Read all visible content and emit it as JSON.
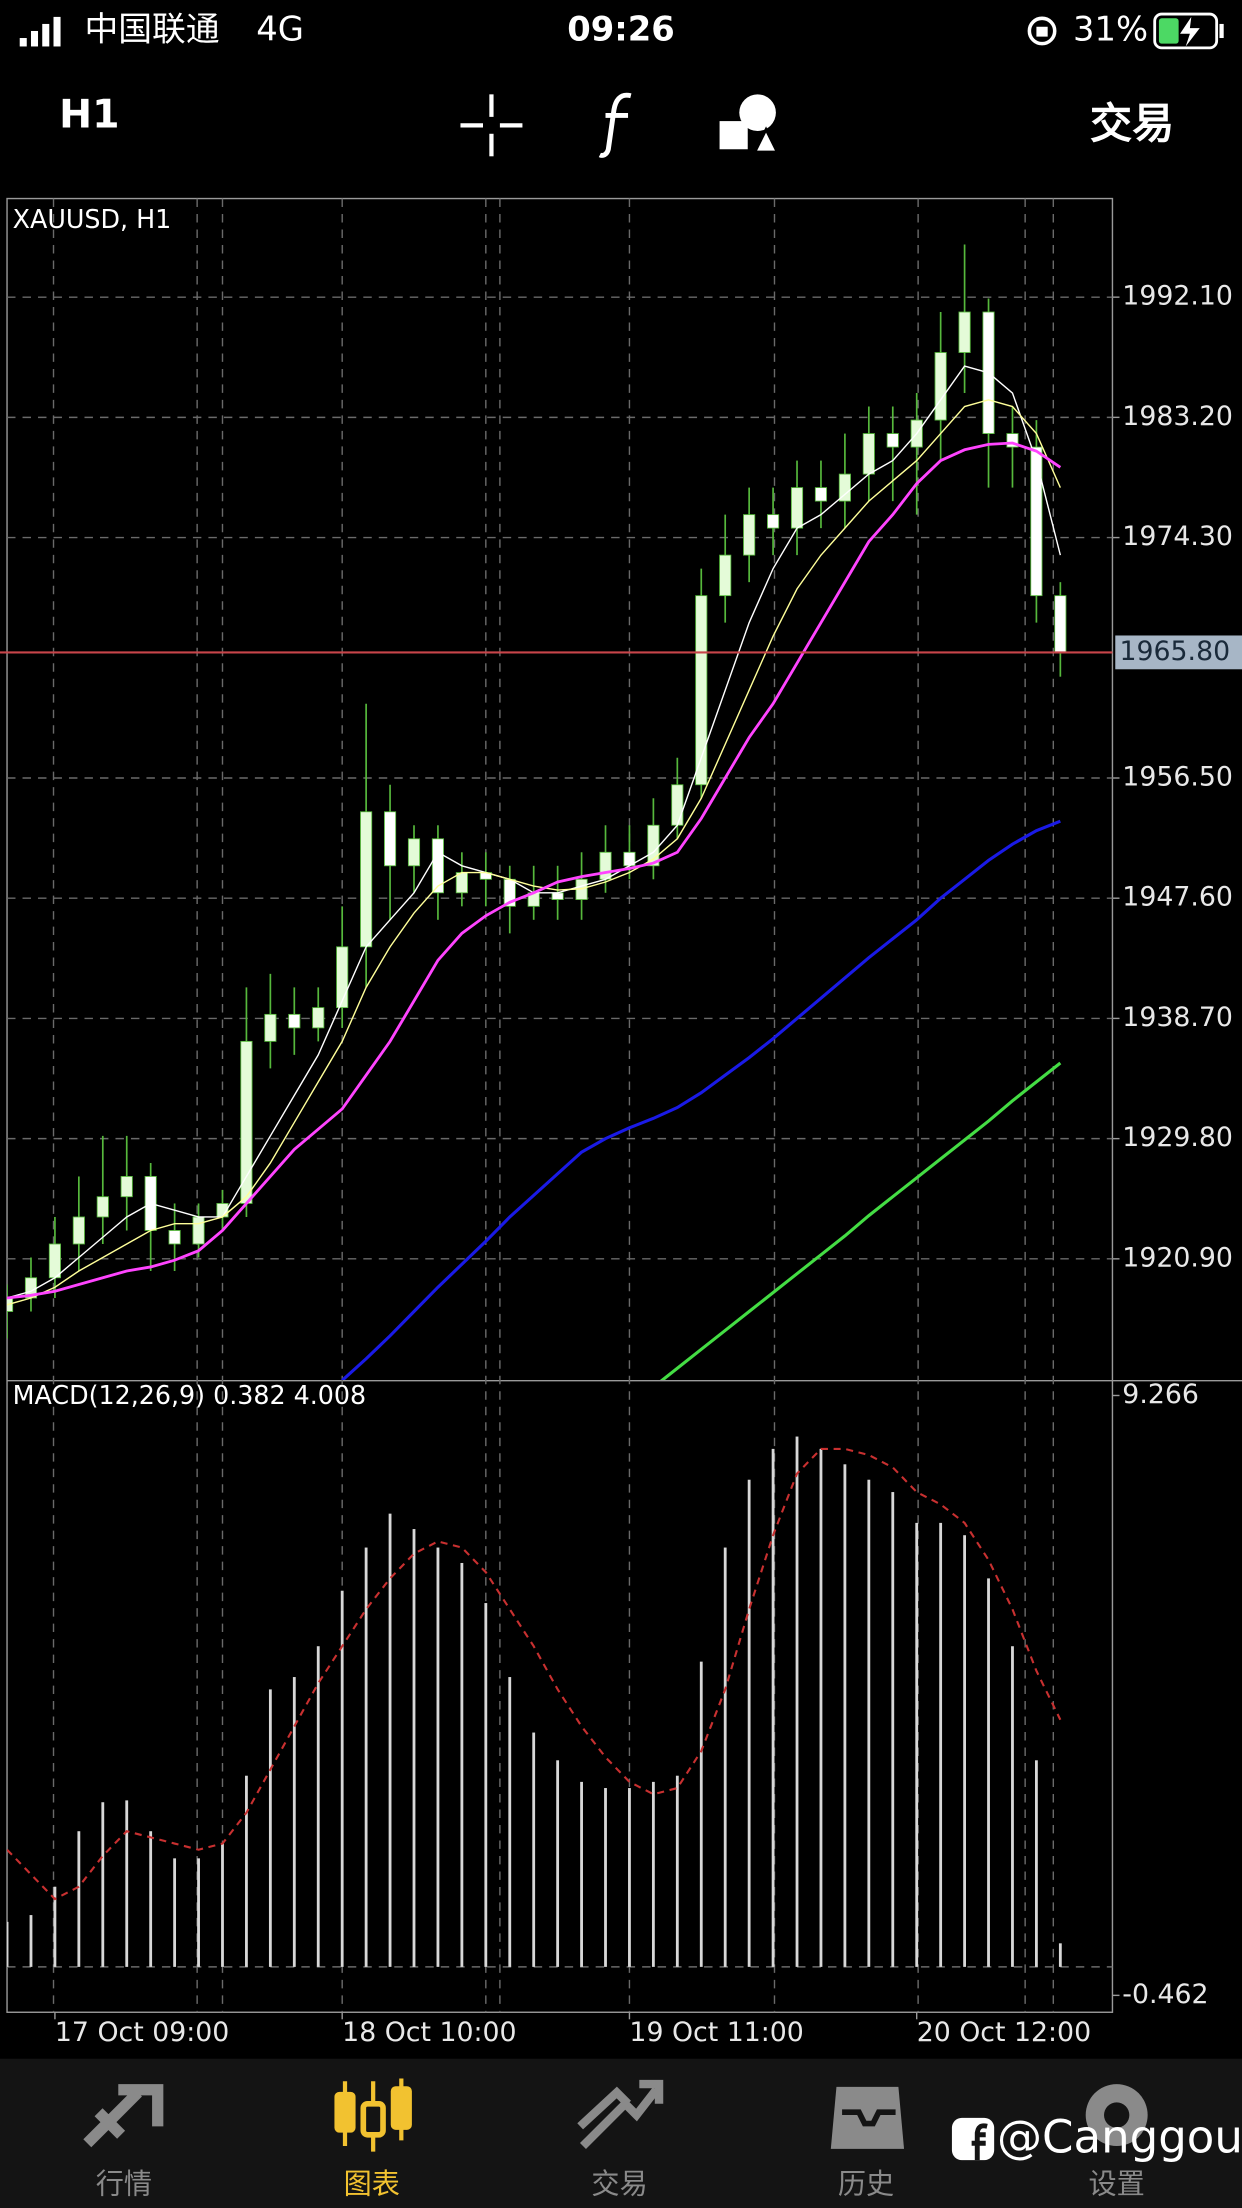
{
  "status_bar": {
    "carrier": "中国联通",
    "network": "4G",
    "time": "09:26",
    "battery": "31%"
  },
  "toolbar": {
    "timeframe": "H1",
    "trade": "交易"
  },
  "tabs": [
    "行情",
    "图表",
    "交易",
    "历史",
    "设置"
  ],
  "watermark": "@Canggou",
  "chart_data": [
    {
      "type": "candlestick",
      "title": "XAUUSD, H1",
      "categories": [
        null,
        null,
        "17 Oct 09:00",
        null,
        null,
        null,
        null,
        null,
        null,
        null,
        null,
        null,
        null,
        null,
        "18 Oct 10:00",
        null,
        null,
        null,
        null,
        null,
        null,
        null,
        null,
        null,
        null,
        null,
        "19 Oct 11:00",
        null,
        null,
        null,
        null,
        null,
        null,
        null,
        null,
        null,
        null,
        null,
        "20 Oct 12:00",
        null,
        null,
        null,
        null,
        null,
        null
      ],
      "open": [
        1917,
        1918,
        1919.5,
        1922,
        1924,
        1925.5,
        1927,
        1923,
        1922,
        1924,
        1925,
        1937,
        1939,
        1938,
        1939.5,
        1944,
        1954,
        1950,
        1952,
        1948,
        1949.5,
        1949,
        1947,
        1948,
        1947.5,
        1949,
        1951,
        1950,
        1953,
        1956,
        1970,
        1973,
        1976,
        1975,
        1978,
        1977,
        1979,
        1982,
        1981,
        1983,
        1988,
        1991,
        1982,
        1981,
        1970
      ],
      "high": [
        1919,
        1921,
        1924,
        1927,
        1930,
        1930,
        1928,
        1925,
        1925,
        1926,
        1941,
        1942,
        1941,
        1941,
        1947,
        1962,
        1956,
        1953,
        1953,
        1951,
        1951,
        1950,
        1950,
        1950,
        1951,
        1953,
        1953,
        1955,
        1958,
        1972,
        1976,
        1978,
        1978,
        1980,
        1980,
        1982,
        1984,
        1984,
        1985,
        1991,
        1996,
        1992,
        1984,
        1983,
        1971
      ],
      "low": [
        1915,
        1917,
        1918,
        1920,
        1922,
        1923,
        1920,
        1920,
        1921,
        1923,
        1924,
        1935,
        1936,
        1937,
        1938,
        1941,
        1946,
        1948,
        1946,
        1947,
        1947,
        1945,
        1946,
        1946,
        1946,
        1948,
        1949,
        1949,
        1952,
        1955,
        1968,
        1971,
        1973,
        1973,
        1975,
        1975,
        1977,
        1977,
        1976,
        1980,
        1985,
        1978,
        1978,
        1968,
        1964
      ],
      "close": [
        1918,
        1919.5,
        1922,
        1924,
        1925.5,
        1927,
        1923,
        1922,
        1924,
        1925,
        1937,
        1939,
        1938,
        1939.5,
        1944,
        1954,
        1950,
        1952,
        1948,
        1949.5,
        1949,
        1947,
        1948,
        1947.5,
        1949,
        1951,
        1950,
        1953,
        1956,
        1970,
        1973,
        1976,
        1975,
        1978,
        1977,
        1979,
        1982,
        1981,
        1983,
        1988,
        1991,
        1982,
        1981,
        1970,
        1965.8
      ],
      "up_color": "#e4fbd8",
      "down_color": "#ffffff",
      "wick_color": "#56b83c",
      "series": [
        {
          "color": "#ffffff",
          "values": [
            1918,
            1918.5,
            1919.5,
            1921,
            1922.5,
            1924,
            1925,
            1924.5,
            1924,
            1924,
            1927,
            1930,
            1933,
            1936,
            1940,
            1944,
            1946,
            1948,
            1951,
            1950,
            1949.5,
            1949,
            1948,
            1948,
            1948.5,
            1949,
            1950,
            1951,
            1953,
            1958,
            1963,
            1968,
            1972,
            1975,
            1976,
            1977.5,
            1979,
            1980,
            1982,
            1984.5,
            1987,
            1986.5,
            1985,
            1980,
            1973
          ]
        },
        {
          "color": "#ffff99",
          "values": [
            1917.5,
            1918,
            1918.8,
            1920,
            1921,
            1922,
            1923,
            1923.5,
            1923.5,
            1924,
            1925.5,
            1928,
            1931,
            1934,
            1937,
            1941,
            1944,
            1946.5,
            1948.5,
            1949.5,
            1949.5,
            1949,
            1948.5,
            1948.2,
            1948.3,
            1948.8,
            1949.5,
            1950.5,
            1952,
            1955,
            1959,
            1963,
            1967,
            1970.5,
            1973,
            1975,
            1977,
            1978.5,
            1980,
            1982,
            1984,
            1984.5,
            1984,
            1982,
            1978
          ]
        },
        {
          "color": "#ff44ff",
          "values": [
            1918,
            1918.2,
            1918.5,
            1919,
            1919.5,
            1920,
            1920.3,
            1920.8,
            1921.5,
            1923,
            1925,
            1927,
            1929,
            1930.5,
            1932,
            1934.5,
            1937,
            1940,
            1943,
            1945,
            1946.3,
            1947.3,
            1948,
            1948.8,
            1949.2,
            1949.5,
            1949.8,
            1950.2,
            1951,
            1953.5,
            1956.5,
            1959.5,
            1962,
            1965,
            1968,
            1971,
            1974,
            1976,
            1978.3,
            1980,
            1980.8,
            1981.2,
            1981.3,
            1980.7,
            1979.5
          ]
        },
        {
          "color": "#1a1ae6",
          "values": [
            null,
            null,
            null,
            null,
            null,
            null,
            null,
            null,
            null,
            null,
            null,
            null,
            null,
            null,
            1911.9,
            1913.5,
            1915.2,
            1917,
            1918.8,
            1920.5,
            1922.2,
            1924,
            1925.6,
            1927.2,
            1928.8,
            1929.8,
            1930.6,
            1931.3,
            1932.1,
            1933.2,
            1934.5,
            1935.8,
            1937.2,
            1938.7,
            1940.2,
            1941.7,
            1943.2,
            1944.6,
            1946,
            1947.6,
            1949,
            1950.4,
            1951.6,
            1952.6,
            1953.3
          ]
        },
        {
          "color": "#44dd44",
          "values": [
            null,
            null,
            null,
            null,
            null,
            null,
            null,
            null,
            null,
            null,
            null,
            null,
            null,
            null,
            null,
            null,
            null,
            null,
            null,
            null,
            null,
            null,
            null,
            null,
            null,
            null,
            null,
            1911.4,
            1912.8,
            1914.2,
            1915.6,
            1917,
            1918.4,
            1919.8,
            1921.2,
            1922.6,
            1924.1,
            1925.5,
            1926.9,
            1928.3,
            1929.7,
            1931.1,
            1932.6,
            1934,
            1935.4
          ]
        }
      ],
      "ylim": [
        1911.93,
        1999.4
      ],
      "yticks": [
        {
          "value": 1920.9,
          "label": "1920.90"
        },
        {
          "value": 1929.8,
          "label": "1929.80"
        },
        {
          "value": 1938.7,
          "label": "1938.70"
        },
        {
          "value": 1947.6,
          "label": "1947.60"
        },
        {
          "value": 1956.5,
          "label": "1956.50"
        },
        {
          "value": 1974.3,
          "label": "1974.30"
        },
        {
          "value": 1983.2,
          "label": "1983.20"
        },
        {
          "value": 1992.1,
          "label": "1992.10"
        }
      ],
      "bid": {
        "value": 1965.8,
        "label": "1965.80"
      },
      "bid_color": "#c8454a",
      "grid": true
    },
    {
      "type": "macd",
      "title": "MACD(12,26,9) 0.382 4.008",
      "values": [
        0.73,
        0.84,
        1.3,
        2.2,
        2.67,
        2.7,
        2.2,
        1.76,
        1.76,
        2.0,
        3.1,
        4.5,
        4.7,
        5.2,
        6.1,
        6.8,
        7.35,
        7.1,
        6.8,
        6.55,
        5.9,
        4.7,
        3.8,
        3.35,
        3.0,
        2.9,
        2.9,
        3.0,
        3.1,
        4.95,
        6.8,
        7.9,
        8.4,
        8.6,
        8.4,
        8.15,
        7.9,
        7.7,
        7.2,
        7.2,
        7.0,
        6.3,
        5.2,
        3.35,
        0.382
      ],
      "color": "#d8d8d8",
      "signal": {
        "color": "#c83030",
        "values": [
          1.9,
          1.5,
          1.1,
          1.3,
          1.8,
          2.2,
          2.1,
          2.0,
          1.9,
          2.0,
          2.5,
          3.2,
          3.9,
          4.6,
          5.2,
          5.8,
          6.3,
          6.7,
          6.9,
          6.8,
          6.4,
          5.8,
          5.2,
          4.5,
          3.9,
          3.4,
          3.0,
          2.8,
          2.9,
          3.5,
          4.5,
          5.8,
          7.0,
          8.0,
          8.4,
          8.4,
          8.3,
          8.1,
          7.7,
          7.5,
          7.2,
          6.6,
          5.8,
          4.8,
          4.008
        ]
      },
      "ylim": [
        -0.462,
        9.266
      ],
      "yticks": [
        -0.462,
        9.266
      ]
    }
  ]
}
